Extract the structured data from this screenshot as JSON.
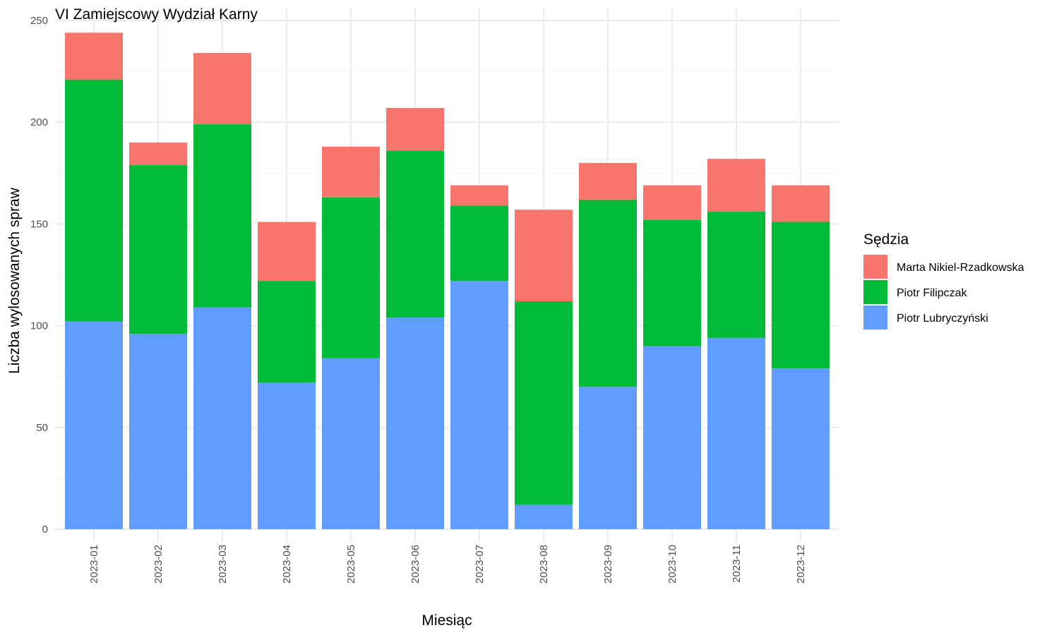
{
  "chart_data": {
    "type": "bar",
    "stacked": true,
    "title": "VI Zamiejscowy Wydział Karny",
    "xlabel": "Miesiąc",
    "ylabel": "Liczba wylosowanych spraw",
    "ylim": [
      0,
      250
    ],
    "yticks": [
      0,
      50,
      100,
      150,
      200,
      250
    ],
    "grid": true,
    "legend_position": "right",
    "legend_title": "Sędzia",
    "categories": [
      "2023-01",
      "2023-02",
      "2023-03",
      "2023-04",
      "2023-05",
      "2023-06",
      "2023-07",
      "2023-08",
      "2023-09",
      "2023-10",
      "2023-11",
      "2023-12"
    ],
    "series": [
      {
        "name": "Piotr Lubryczyński",
        "color": "#619cff",
        "values": [
          102,
          96,
          109,
          72,
          84,
          104,
          122,
          12,
          70,
          90,
          94,
          79
        ]
      },
      {
        "name": "Piotr Filipczak",
        "color": "#00ba38",
        "values": [
          119,
          83,
          90,
          50,
          79,
          82,
          37,
          100,
          92,
          62,
          62,
          72
        ]
      },
      {
        "name": "Marta Nikiel-Rzadkowska",
        "color": "#f8766d",
        "values": [
          23,
          11,
          35,
          29,
          25,
          21,
          10,
          45,
          18,
          17,
          26,
          18
        ]
      }
    ],
    "legend_order": [
      "Marta Nikiel-Rzadkowska",
      "Piotr Filipczak",
      "Piotr Lubryczyński"
    ]
  }
}
